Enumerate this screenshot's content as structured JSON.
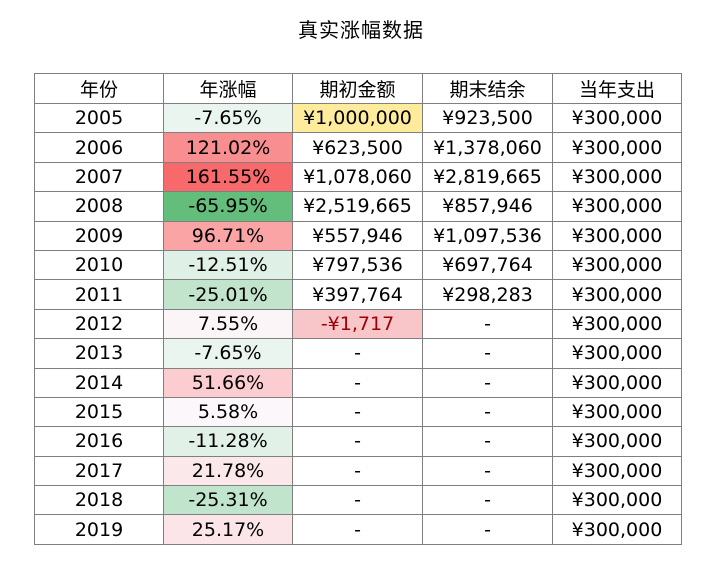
{
  "chart_data": {
    "type": "table",
    "title": "真实涨幅数据",
    "columns": [
      "年份",
      "年涨幅",
      "期初金额",
      "期末结余",
      "当年支出"
    ],
    "rows": [
      [
        "2005",
        "-7.65%",
        "¥1,000,000",
        "¥923,500",
        "¥300,000"
      ],
      [
        "2006",
        "121.02%",
        "¥623,500",
        "¥1,378,060",
        "¥300,000"
      ],
      [
        "2007",
        "161.55%",
        "¥1,078,060",
        "¥2,819,665",
        "¥300,000"
      ],
      [
        "2008",
        "-65.95%",
        "¥2,519,665",
        "¥857,946",
        "¥300,000"
      ],
      [
        "2009",
        "96.71%",
        "¥557,946",
        "¥1,097,536",
        "¥300,000"
      ],
      [
        "2010",
        "-12.51%",
        "¥797,536",
        "¥697,764",
        "¥300,000"
      ],
      [
        "2011",
        "-25.01%",
        "¥397,764",
        "¥298,283",
        "¥300,000"
      ],
      [
        "2012",
        "7.55%",
        "-¥1,717",
        "-",
        "¥300,000"
      ],
      [
        "2013",
        "-7.65%",
        "-",
        "-",
        "¥300,000"
      ],
      [
        "2014",
        "51.66%",
        "-",
        "-",
        "¥300,000"
      ],
      [
        "2015",
        "5.58%",
        "-",
        "-",
        "¥300,000"
      ],
      [
        "2016",
        "-11.28%",
        "-",
        "-",
        "¥300,000"
      ],
      [
        "2017",
        "21.78%",
        "-",
        "-",
        "¥300,000"
      ],
      [
        "2018",
        "-25.31%",
        "-",
        "-",
        "¥300,000"
      ],
      [
        "2019",
        "25.17%",
        "-",
        "-",
        "¥300,000"
      ]
    ],
    "growth_values": [
      -7.65,
      121.02,
      161.55,
      -65.95,
      96.71,
      -12.51,
      -25.01,
      7.55,
      -7.65,
      51.66,
      5.58,
      -11.28,
      21.78,
      -25.31,
      25.17
    ],
    "highlights": {
      "initial_amount_first": "#ffeb9c",
      "negative_initial_amount_bg": "#f8c6c8",
      "negative_initial_amount_text": "#9c0006"
    },
    "color_scale": {
      "min_color": "#63be7b",
      "mid_color": "#fcfcff",
      "max_color": "#f8696b"
    }
  }
}
